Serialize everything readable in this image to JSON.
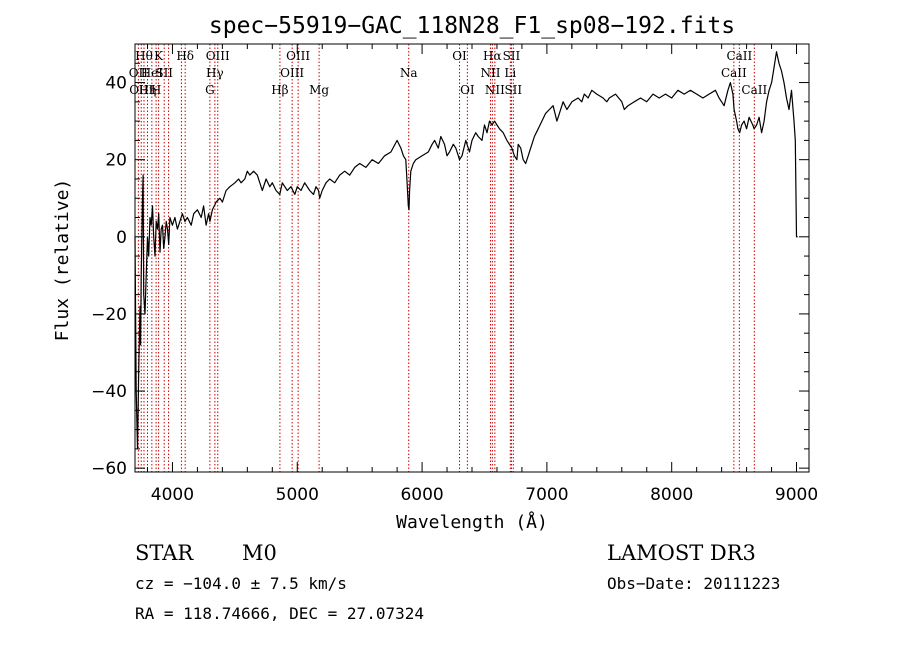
{
  "chart_data": {
    "type": "line",
    "title": "spec−55919−GAC_118N28_F1_sp08−192.fits",
    "xlabel": "Wavelength (Å)",
    "ylabel": "Flux (relative)",
    "xlim": [
      3700,
      9100
    ],
    "ylim": [
      -61,
      50
    ],
    "x_ticks": [
      4000,
      5000,
      6000,
      7000,
      8000,
      9000
    ],
    "y_ticks": [
      -60,
      -40,
      -20,
      0,
      20,
      40
    ],
    "x_tick_labels": [
      "4000",
      "5000",
      "6000",
      "7000",
      "8000",
      "9000"
    ],
    "y_tick_labels": [
      "−60",
      "−40",
      "−20",
      "0",
      "20",
      "40"
    ],
    "grid": false,
    "series": [
      {
        "color": "#000000",
        "points": [
          [
            3700,
            0
          ],
          [
            3710,
            -40
          ],
          [
            3720,
            -55
          ],
          [
            3730,
            -35
          ],
          [
            3740,
            -18
          ],
          [
            3745,
            -28
          ],
          [
            3750,
            -10
          ],
          [
            3760,
            10
          ],
          [
            3765,
            16
          ],
          [
            3770,
            -15
          ],
          [
            3780,
            -20
          ],
          [
            3790,
            -10
          ],
          [
            3800,
            0
          ],
          [
            3810,
            -5
          ],
          [
            3820,
            5
          ],
          [
            3830,
            3
          ],
          [
            3840,
            8
          ],
          [
            3850,
            0
          ],
          [
            3860,
            -5
          ],
          [
            3870,
            4
          ],
          [
            3880,
            2
          ],
          [
            3890,
            6
          ],
          [
            3900,
            -4
          ],
          [
            3910,
            2
          ],
          [
            3920,
            3
          ],
          [
            3930,
            -3
          ],
          [
            3940,
            0
          ],
          [
            3950,
            4
          ],
          [
            3960,
            2
          ],
          [
            3970,
            -2
          ],
          [
            3980,
            5
          ],
          [
            4000,
            3
          ],
          [
            4020,
            5
          ],
          [
            4040,
            2
          ],
          [
            4060,
            4
          ],
          [
            4080,
            6
          ],
          [
            4100,
            4
          ],
          [
            4120,
            5
          ],
          [
            4150,
            3
          ],
          [
            4170,
            6
          ],
          [
            4200,
            7
          ],
          [
            4230,
            5
          ],
          [
            4250,
            8
          ],
          [
            4270,
            3
          ],
          [
            4290,
            6
          ],
          [
            4300,
            4
          ],
          [
            4320,
            7
          ],
          [
            4350,
            9
          ],
          [
            4380,
            10
          ],
          [
            4400,
            9
          ],
          [
            4430,
            12
          ],
          [
            4460,
            13
          ],
          [
            4500,
            14
          ],
          [
            4530,
            15
          ],
          [
            4550,
            14
          ],
          [
            4580,
            15
          ],
          [
            4600,
            17
          ],
          [
            4620,
            16
          ],
          [
            4650,
            17
          ],
          [
            4680,
            16
          ],
          [
            4700,
            14
          ],
          [
            4720,
            12
          ],
          [
            4750,
            15
          ],
          [
            4780,
            13
          ],
          [
            4800,
            14
          ],
          [
            4830,
            12
          ],
          [
            4860,
            11
          ],
          [
            4880,
            14
          ],
          [
            4900,
            13
          ],
          [
            4920,
            12
          ],
          [
            4950,
            13
          ],
          [
            4980,
            11
          ],
          [
            5000,
            13
          ],
          [
            5030,
            12
          ],
          [
            5060,
            14
          ],
          [
            5100,
            12
          ],
          [
            5130,
            11
          ],
          [
            5150,
            13
          ],
          [
            5170,
            12
          ],
          [
            5180,
            10
          ],
          [
            5200,
            12
          ],
          [
            5230,
            14
          ],
          [
            5260,
            15
          ],
          [
            5300,
            14
          ],
          [
            5340,
            16
          ],
          [
            5380,
            17
          ],
          [
            5420,
            16
          ],
          [
            5460,
            18
          ],
          [
            5500,
            19
          ],
          [
            5550,
            18
          ],
          [
            5600,
            20
          ],
          [
            5650,
            19
          ],
          [
            5700,
            21
          ],
          [
            5750,
            22
          ],
          [
            5800,
            25
          ],
          [
            5830,
            23
          ],
          [
            5850,
            21
          ],
          [
            5870,
            20
          ],
          [
            5880,
            14
          ],
          [
            5890,
            8
          ],
          [
            5895,
            7
          ],
          [
            5900,
            12
          ],
          [
            5910,
            17
          ],
          [
            5930,
            19
          ],
          [
            5950,
            20
          ],
          [
            6000,
            21
          ],
          [
            6050,
            22
          ],
          [
            6080,
            24
          ],
          [
            6100,
            25
          ],
          [
            6130,
            23
          ],
          [
            6150,
            26
          ],
          [
            6180,
            24
          ],
          [
            6200,
            21
          ],
          [
            6220,
            22
          ],
          [
            6250,
            24
          ],
          [
            6270,
            23
          ],
          [
            6290,
            21
          ],
          [
            6300,
            20
          ],
          [
            6320,
            21
          ],
          [
            6350,
            25
          ],
          [
            6380,
            22
          ],
          [
            6400,
            25
          ],
          [
            6430,
            27
          ],
          [
            6450,
            26
          ],
          [
            6480,
            25
          ],
          [
            6500,
            29
          ],
          [
            6520,
            27
          ],
          [
            6540,
            30
          ],
          [
            6560,
            29
          ],
          [
            6580,
            30
          ],
          [
            6600,
            29
          ],
          [
            6620,
            28
          ],
          [
            6650,
            27
          ],
          [
            6680,
            25
          ],
          [
            6700,
            24
          ],
          [
            6720,
            23
          ],
          [
            6740,
            21
          ],
          [
            6760,
            20
          ],
          [
            6770,
            24
          ],
          [
            6790,
            23
          ],
          [
            6810,
            20
          ],
          [
            6830,
            19
          ],
          [
            6850,
            21
          ],
          [
            6880,
            24
          ],
          [
            6900,
            26
          ],
          [
            6930,
            28
          ],
          [
            6960,
            30
          ],
          [
            6990,
            32
          ],
          [
            7020,
            33
          ],
          [
            7050,
            34
          ],
          [
            7080,
            30
          ],
          [
            7100,
            32
          ],
          [
            7130,
            35
          ],
          [
            7160,
            33
          ],
          [
            7200,
            35
          ],
          [
            7250,
            36
          ],
          [
            7280,
            35
          ],
          [
            7300,
            37
          ],
          [
            7330,
            36
          ],
          [
            7360,
            38
          ],
          [
            7400,
            37
          ],
          [
            7450,
            36
          ],
          [
            7480,
            35
          ],
          [
            7500,
            36
          ],
          [
            7550,
            37
          ],
          [
            7600,
            35
          ],
          [
            7620,
            33
          ],
          [
            7650,
            34
          ],
          [
            7700,
            35
          ],
          [
            7750,
            36
          ],
          [
            7800,
            35
          ],
          [
            7850,
            37
          ],
          [
            7900,
            36
          ],
          [
            7950,
            37
          ],
          [
            8000,
            36
          ],
          [
            8050,
            38
          ],
          [
            8100,
            37
          ],
          [
            8150,
            38
          ],
          [
            8200,
            37
          ],
          [
            8250,
            36
          ],
          [
            8300,
            37
          ],
          [
            8350,
            38
          ],
          [
            8380,
            36
          ],
          [
            8400,
            35
          ],
          [
            8420,
            34
          ],
          [
            8450,
            38
          ],
          [
            8470,
            40
          ],
          [
            8490,
            37
          ],
          [
            8500,
            33
          ],
          [
            8520,
            30
          ],
          [
            8530,
            28
          ],
          [
            8545,
            27
          ],
          [
            8560,
            29
          ],
          [
            8580,
            30
          ],
          [
            8600,
            28
          ],
          [
            8620,
            31
          ],
          [
            8650,
            29
          ],
          [
            8660,
            28
          ],
          [
            8680,
            29
          ],
          [
            8700,
            31
          ],
          [
            8720,
            27
          ],
          [
            8740,
            30
          ],
          [
            8760,
            35
          ],
          [
            8780,
            38
          ],
          [
            8800,
            40
          ],
          [
            8820,
            44
          ],
          [
            8840,
            48
          ],
          [
            8860,
            45
          ],
          [
            8880,
            43
          ],
          [
            8900,
            40
          ],
          [
            8920,
            36
          ],
          [
            8940,
            33
          ],
          [
            8960,
            38
          ],
          [
            8980,
            30
          ],
          [
            8990,
            25
          ],
          [
            9000,
            0
          ],
          [
            9010,
            0
          ]
        ]
      }
    ],
    "line_markers": [
      {
        "wavelength": 3727,
        "label": "OII",
        "row": 2
      },
      {
        "wavelength": 3750,
        "label": "OIII",
        "row": 3
      },
      {
        "wavelength": 3772,
        "label": "Hθ",
        "row": 1
      },
      {
        "wavelength": 3800,
        "label": "Hη",
        "row": 3
      },
      {
        "wavelength": 3835,
        "label": "HeI",
        "row": 2
      },
      {
        "wavelength": 3869,
        "label": "H",
        "row": 3
      },
      {
        "wavelength": 3889,
        "label": "K",
        "row": 1
      },
      {
        "wavelength": 3934,
        "label": "SII",
        "row": 2
      },
      {
        "wavelength": 3969,
        "label": "",
        "row": 3
      },
      {
        "wavelength": 4072,
        "label": "",
        "row": 2
      },
      {
        "wavelength": 4102,
        "label": "Hδ",
        "row": 1
      },
      {
        "wavelength": 4300,
        "label": "G",
        "row": 3
      },
      {
        "wavelength": 4340,
        "label": "Hγ",
        "row": 2
      },
      {
        "wavelength": 4363,
        "label": "OIII",
        "row": 1
      },
      {
        "wavelength": 4861,
        "label": "Hβ",
        "row": 3
      },
      {
        "wavelength": 4959,
        "label": "OIII",
        "row": 2
      },
      {
        "wavelength": 5007,
        "label": "OIII",
        "row": 1
      },
      {
        "wavelength": 5175,
        "label": "Mg",
        "row": 3
      },
      {
        "wavelength": 5893,
        "label": "Na",
        "row": 2
      },
      {
        "wavelength": 6300,
        "label": "OI",
        "row": 1
      },
      {
        "wavelength": 6363,
        "label": "OI",
        "row": 3
      },
      {
        "wavelength": 6548,
        "label": "NII",
        "row": 2
      },
      {
        "wavelength": 6563,
        "label": "Hα",
        "row": 1
      },
      {
        "wavelength": 6583,
        "label": "NII",
        "row": 3
      },
      {
        "wavelength": 6707,
        "label": "Li",
        "row": 2
      },
      {
        "wavelength": 6716,
        "label": "SII",
        "row": 1
      },
      {
        "wavelength": 6731,
        "label": "SII",
        "row": 3
      },
      {
        "wavelength": 8498,
        "label": "CaII",
        "row": 2
      },
      {
        "wavelength": 8542,
        "label": "CaII",
        "row": 1
      },
      {
        "wavelength": 8662,
        "label": "CaII",
        "row": 3
      }
    ]
  },
  "info": {
    "class_label": "STAR",
    "subclass_label": "M0",
    "survey_label": "LAMOST DR3",
    "cz_text": "cz = −104.0 ± 7.5 km/s",
    "obs_date_text": "Obs−Date: 20111223",
    "coords_text": "RA = 118.74666, DEC =  27.07324"
  },
  "colors": {
    "spectrum": "#000000",
    "line_markers": "#cc0000",
    "axes": "#000000",
    "background": "#ffffff"
  }
}
